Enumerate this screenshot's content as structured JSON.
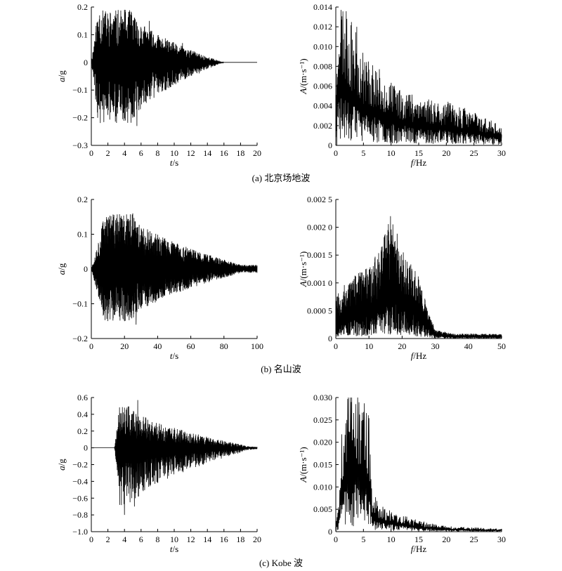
{
  "captions": [
    "(a) 北京场地波",
    "(b) 名山波",
    "(c) Kobe 波"
  ],
  "chart_data": [
    {
      "type": "line",
      "id": "a-time",
      "row": 0,
      "col": 0,
      "ylabel_main": "a",
      "ylabel_unit": "/g",
      "xlabel_main": "t",
      "xlabel_unit": "/s",
      "xlim": [
        0,
        20
      ],
      "ylim": [
        -0.3,
        0.2
      ],
      "xticks": [
        0,
        2,
        4,
        6,
        8,
        10,
        12,
        14,
        16,
        18,
        20
      ],
      "xtick_labels": [
        "0",
        "2",
        "4",
        "6",
        "8",
        "10",
        "12",
        "14",
        "16",
        "18",
        "20"
      ],
      "yticks": [
        -0.3,
        -0.2,
        -0.1,
        0,
        0.1,
        0.2
      ],
      "ytick_labels": [
        "−0.3",
        "−0.2",
        "−0.1",
        "0",
        "0.1",
        "0.2"
      ],
      "signal": {
        "kind": "accel",
        "t_end": 16,
        "n": 900,
        "amp": 0.19,
        "neg_amp": 0.22,
        "rise": 0.8,
        "peak_t": 5,
        "decay_end": 16,
        "seed": 11
      },
      "x": [
        0,
        1,
        2,
        3,
        4,
        5,
        5.5,
        7,
        9,
        11,
        13,
        16,
        20
      ],
      "y": [
        0,
        0.17,
        -0.19,
        0.16,
        0.19,
        -0.2,
        -0.23,
        0.15,
        -0.1,
        0.07,
        -0.04,
        0,
        0
      ]
    },
    {
      "type": "line",
      "id": "a-freq",
      "row": 0,
      "col": 1,
      "ylabel_main": "A",
      "ylabel_unit": "/(m·s⁻¹)",
      "xlabel_main": "f",
      "xlabel_unit": "/Hz",
      "xlim": [
        0,
        30
      ],
      "ylim": [
        0,
        0.014
      ],
      "xticks": [
        0,
        5,
        10,
        15,
        20,
        25,
        30
      ],
      "xtick_labels": [
        "0",
        "5",
        "10",
        "15",
        "20",
        "25",
        "30"
      ],
      "yticks": [
        0,
        0.002,
        0.004,
        0.006,
        0.008,
        0.01,
        0.012,
        0.014
      ],
      "ytick_labels": [
        "0",
        "0.002",
        "0.004",
        "0.006",
        "0.008",
        "0.010",
        "0.012",
        "0.014"
      ],
      "signal": {
        "kind": "spectrum",
        "f_end": 30,
        "n": 700,
        "seed": 23,
        "envelope_f": [
          0,
          0.5,
          2,
          5,
          10,
          15,
          20,
          25,
          30
        ],
        "envelope_A": [
          0.003,
          0.01,
          0.0085,
          0.006,
          0.004,
          0.0032,
          0.0028,
          0.0022,
          0.0012
        ]
      },
      "x": [
        0.2,
        1,
        2,
        3,
        3.8,
        5.5,
        7,
        10,
        15,
        20,
        23,
        30
      ],
      "y": [
        0.0,
        0.012,
        0.0128,
        0.0107,
        0.012,
        0.0069,
        0.005,
        0.004,
        0.004,
        0.0035,
        0.003,
        0.0008
      ]
    },
    {
      "type": "line",
      "id": "b-time",
      "row": 1,
      "col": 0,
      "ylabel_main": "a",
      "ylabel_unit": "/g",
      "xlabel_main": "t",
      "xlabel_unit": "/s",
      "xlim": [
        0,
        100
      ],
      "ylim": [
        -0.2,
        0.2
      ],
      "xticks": [
        0,
        20,
        40,
        60,
        80,
        100
      ],
      "xtick_labels": [
        "0",
        "20",
        "40",
        "60",
        "80",
        "100"
      ],
      "yticks": [
        -0.2,
        -0.1,
        0,
        0.1,
        0.2
      ],
      "ytick_labels": [
        "−0.2",
        "−0.1",
        "0",
        "0.1",
        "0.2"
      ],
      "signal": {
        "kind": "accel",
        "t_end": 100,
        "n": 1600,
        "amp": 0.16,
        "neg_amp": 0.15,
        "rise": 8,
        "peak_t": 25,
        "decay_end": 100,
        "floor": 0.012,
        "seed": 37
      },
      "x": [
        0,
        8,
        12,
        20,
        25,
        27,
        35,
        50,
        70,
        100
      ],
      "y": [
        0,
        0.02,
        0.13,
        -0.15,
        0.16,
        -0.16,
        0.06,
        0.03,
        0.015,
        0.01
      ]
    },
    {
      "type": "line",
      "id": "b-freq",
      "row": 1,
      "col": 1,
      "ylabel_main": "A",
      "ylabel_unit": "/(m·s⁻¹)",
      "xlabel_main": "f",
      "xlabel_unit": "/Hz",
      "xlim": [
        0,
        50
      ],
      "ylim": [
        0,
        0.0025
      ],
      "xticks": [
        0,
        10,
        20,
        30,
        40,
        50
      ],
      "xtick_labels": [
        "0",
        "10",
        "20",
        "30",
        "40",
        "50"
      ],
      "yticks": [
        0,
        0.0005,
        0.001,
        0.0015,
        0.002,
        0.0025
      ],
      "ytick_labels": [
        "0",
        "0.000 5",
        "0.001 0",
        "0.001 5",
        "0.002 0",
        "0.002 5"
      ],
      "signal": {
        "kind": "spectrum",
        "f_end": 50,
        "n": 1400,
        "seed": 53,
        "envelope_f": [
          0,
          5,
          10,
          15,
          17,
          20,
          25,
          28,
          30,
          35,
          50
        ],
        "envelope_A": [
          0.0005,
          0.0007,
          0.0008,
          0.0012,
          0.0014,
          0.001,
          0.0007,
          0.0003,
          0.0001,
          6e-05,
          5e-05
        ]
      },
      "x": [
        0,
        5,
        10,
        15,
        16.5,
        20,
        25,
        28,
        30,
        40,
        50
      ],
      "y": [
        0.0003,
        0.0008,
        0.0009,
        0.0015,
        0.0022,
        0.0012,
        0.0008,
        0.0004,
        0.0001,
        5e-05,
        5e-05
      ]
    },
    {
      "type": "line",
      "id": "c-time",
      "row": 2,
      "col": 0,
      "ylabel_main": "a",
      "ylabel_unit": "/g",
      "xlabel_main": "t",
      "xlabel_unit": "/s",
      "xlim": [
        0,
        20
      ],
      "ylim": [
        -1.0,
        0.6
      ],
      "xticks": [
        0,
        2,
        4,
        6,
        8,
        10,
        12,
        14,
        16,
        18,
        20
      ],
      "xtick_labels": [
        "0",
        "2",
        "4",
        "6",
        "8",
        "10",
        "12",
        "14",
        "16",
        "18",
        "20"
      ],
      "yticks": [
        -1.0,
        -0.8,
        -0.6,
        -0.4,
        -0.2,
        0,
        0.2,
        0.4,
        0.6
      ],
      "ytick_labels": [
        "−1.0",
        "−0.8",
        "−0.6",
        "−0.4",
        "−0.2",
        "0",
        "0.2",
        "0.4",
        "0.6"
      ],
      "signal": {
        "kind": "accel",
        "t_end": 20,
        "n": 800,
        "amp": 0.5,
        "neg_amp": 0.7,
        "rise": 0.6,
        "peak_t": 5,
        "start_t": 2.8,
        "decay_end": 20,
        "floor": 0.015,
        "seed": 71
      },
      "x": [
        0,
        2.8,
        3.6,
        4.0,
        4.3,
        5.2,
        5.6,
        7,
        9,
        12,
        20
      ],
      "y": [
        0,
        0.01,
        0.3,
        -0.8,
        0.48,
        -0.7,
        0.57,
        -0.3,
        0.15,
        0.05,
        0.01
      ]
    },
    {
      "type": "line",
      "id": "c-freq",
      "row": 2,
      "col": 1,
      "ylabel_main": "A",
      "ylabel_unit": "/(m·s⁻¹)",
      "xlabel_main": "f",
      "xlabel_unit": "/Hz",
      "xlim": [
        0,
        30
      ],
      "ylim": [
        0,
        0.03
      ],
      "xticks": [
        0,
        5,
        10,
        15,
        20,
        25,
        30
      ],
      "xtick_labels": [
        "0",
        "5",
        "10",
        "15",
        "20",
        "25",
        "30"
      ],
      "yticks": [
        0,
        0.005,
        0.01,
        0.015,
        0.02,
        0.025,
        0.03
      ],
      "ytick_labels": [
        "0",
        "0.005",
        "0.010",
        "0.015",
        "0.020",
        "0.025",
        "0.030"
      ],
      "signal": {
        "kind": "spectrum",
        "f_end": 30,
        "n": 500,
        "seed": 89,
        "envelope_f": [
          0,
          0.5,
          1.2,
          2,
          3,
          4,
          5,
          6,
          6.5,
          8,
          10,
          15,
          20,
          30
        ],
        "envelope_A": [
          0.001,
          0.004,
          0.016,
          0.02,
          0.022,
          0.02,
          0.02,
          0.016,
          0.006,
          0.004,
          0.003,
          0.0016,
          0.0008,
          0.0004
        ]
      },
      "x": [
        0,
        1,
        2,
        2.8,
        4,
        5,
        5.5,
        6.5,
        8,
        10,
        15,
        20,
        30
      ],
      "y": [
        0,
        0.004,
        0.025,
        0.029,
        0.022,
        0.022,
        0.024,
        0.006,
        0.005,
        0.004,
        0.002,
        0.001,
        0.0005
      ]
    }
  ]
}
